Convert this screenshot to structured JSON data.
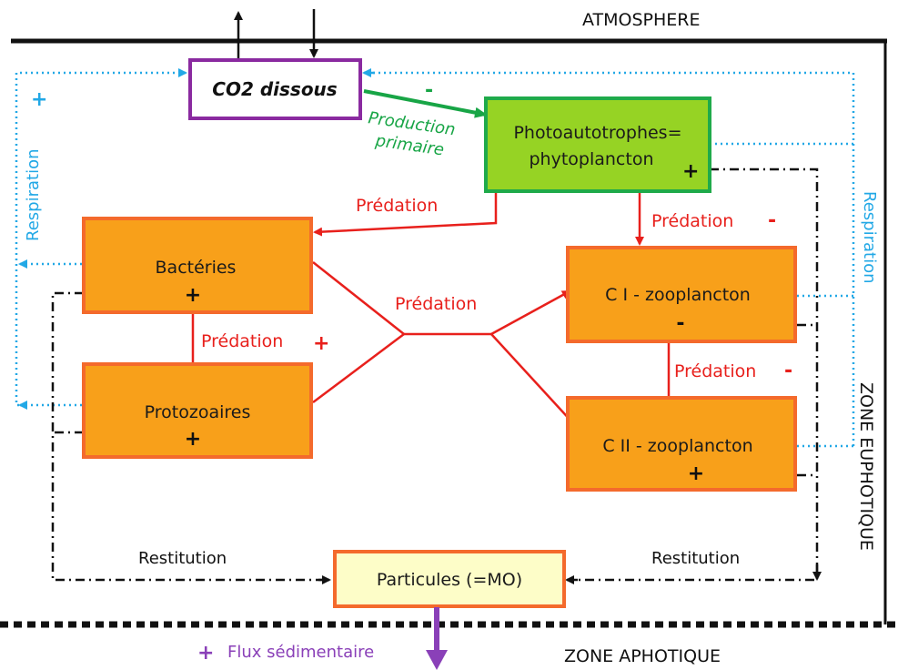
{
  "zones": {
    "atmosphere": "ATMOSPHERE",
    "euphotique": "ZONE EUPHOTIQUE",
    "aphotique": "ZONE APHOTIQUE"
  },
  "nodes": {
    "co2": "CO2 dissous",
    "phyto_line1": "Photoautotrophes=",
    "phyto_line2": "phytoplancton",
    "phyto_sign": "+",
    "bacteries": "Bactéries",
    "bacteries_sign": "+",
    "protozoaires": "Protozoaires",
    "protozoaires_sign": "+",
    "c1": "C I - zooplancton",
    "c1_sign": "-",
    "c2": "C II - zooplancton",
    "c2_sign": "+",
    "particules": "Particules (=MO)"
  },
  "labels": {
    "production_sign": "-",
    "production_line1": "Production",
    "production_line2": "primaire",
    "predation_top": "Prédation",
    "predation_center": "Prédation",
    "predation_phyto_c1": "Prédation",
    "predation_phyto_c1_sign": "-",
    "predation_bact_proto": "Prédation",
    "predation_bact_proto_sign": "+",
    "predation_c1_c2": "Prédation",
    "predation_c1_c2_sign": "-",
    "respiration_left": "Respiration",
    "respiration_left_sign": "+",
    "respiration_right": "Respiration",
    "restitution_left": "Restitution",
    "restitution_right": "Restitution",
    "flux_sign": "+",
    "flux": "Flux sédimentaire"
  },
  "colors": {
    "orange_fill": "#f8a01a",
    "orange_border": "#f46a2c",
    "phyto_fill": "#96d324",
    "phyto_border": "#1faa4a",
    "co2_border": "#8a2aa0",
    "particules_fill": "#fdfdc8",
    "predation_red": "#e8201c",
    "production_green": "#18a546",
    "respiration_blue": "#22a8e6",
    "flux_purple": "#8a40b8"
  }
}
